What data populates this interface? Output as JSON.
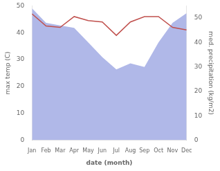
{
  "chart_data": {
    "type": "line",
    "xlabel": "date (month)",
    "ylabel": "max temp (C)",
    "y2label": "med. precipitation (kg/m2)",
    "categories": [
      "Jan",
      "Feb",
      "Mar",
      "Apr",
      "May",
      "Jun",
      "Jul",
      "Aug",
      "Sep",
      "Oct",
      "Nov",
      "Dec"
    ],
    "series": [
      {
        "values": [
          47,
          42.5,
          42,
          46,
          44.5,
          44,
          39,
          44,
          46,
          46,
          42,
          41
        ],
        "color": "#c0504d",
        "axis": "y"
      },
      {
        "type": "area",
        "values": [
          54,
          48,
          47,
          46,
          40,
          34,
          29,
          31.5,
          30,
          40,
          48,
          52
        ],
        "color": "#b0b8e8",
        "axis": "y2"
      }
    ],
    "ylim": [
      0,
      50
    ],
    "yticks": [
      0,
      10,
      20,
      30,
      40,
      50
    ],
    "y2lim": [
      0,
      55
    ],
    "y2ticks": [
      0,
      10,
      20,
      30,
      40,
      50
    ],
    "grid": false
  }
}
